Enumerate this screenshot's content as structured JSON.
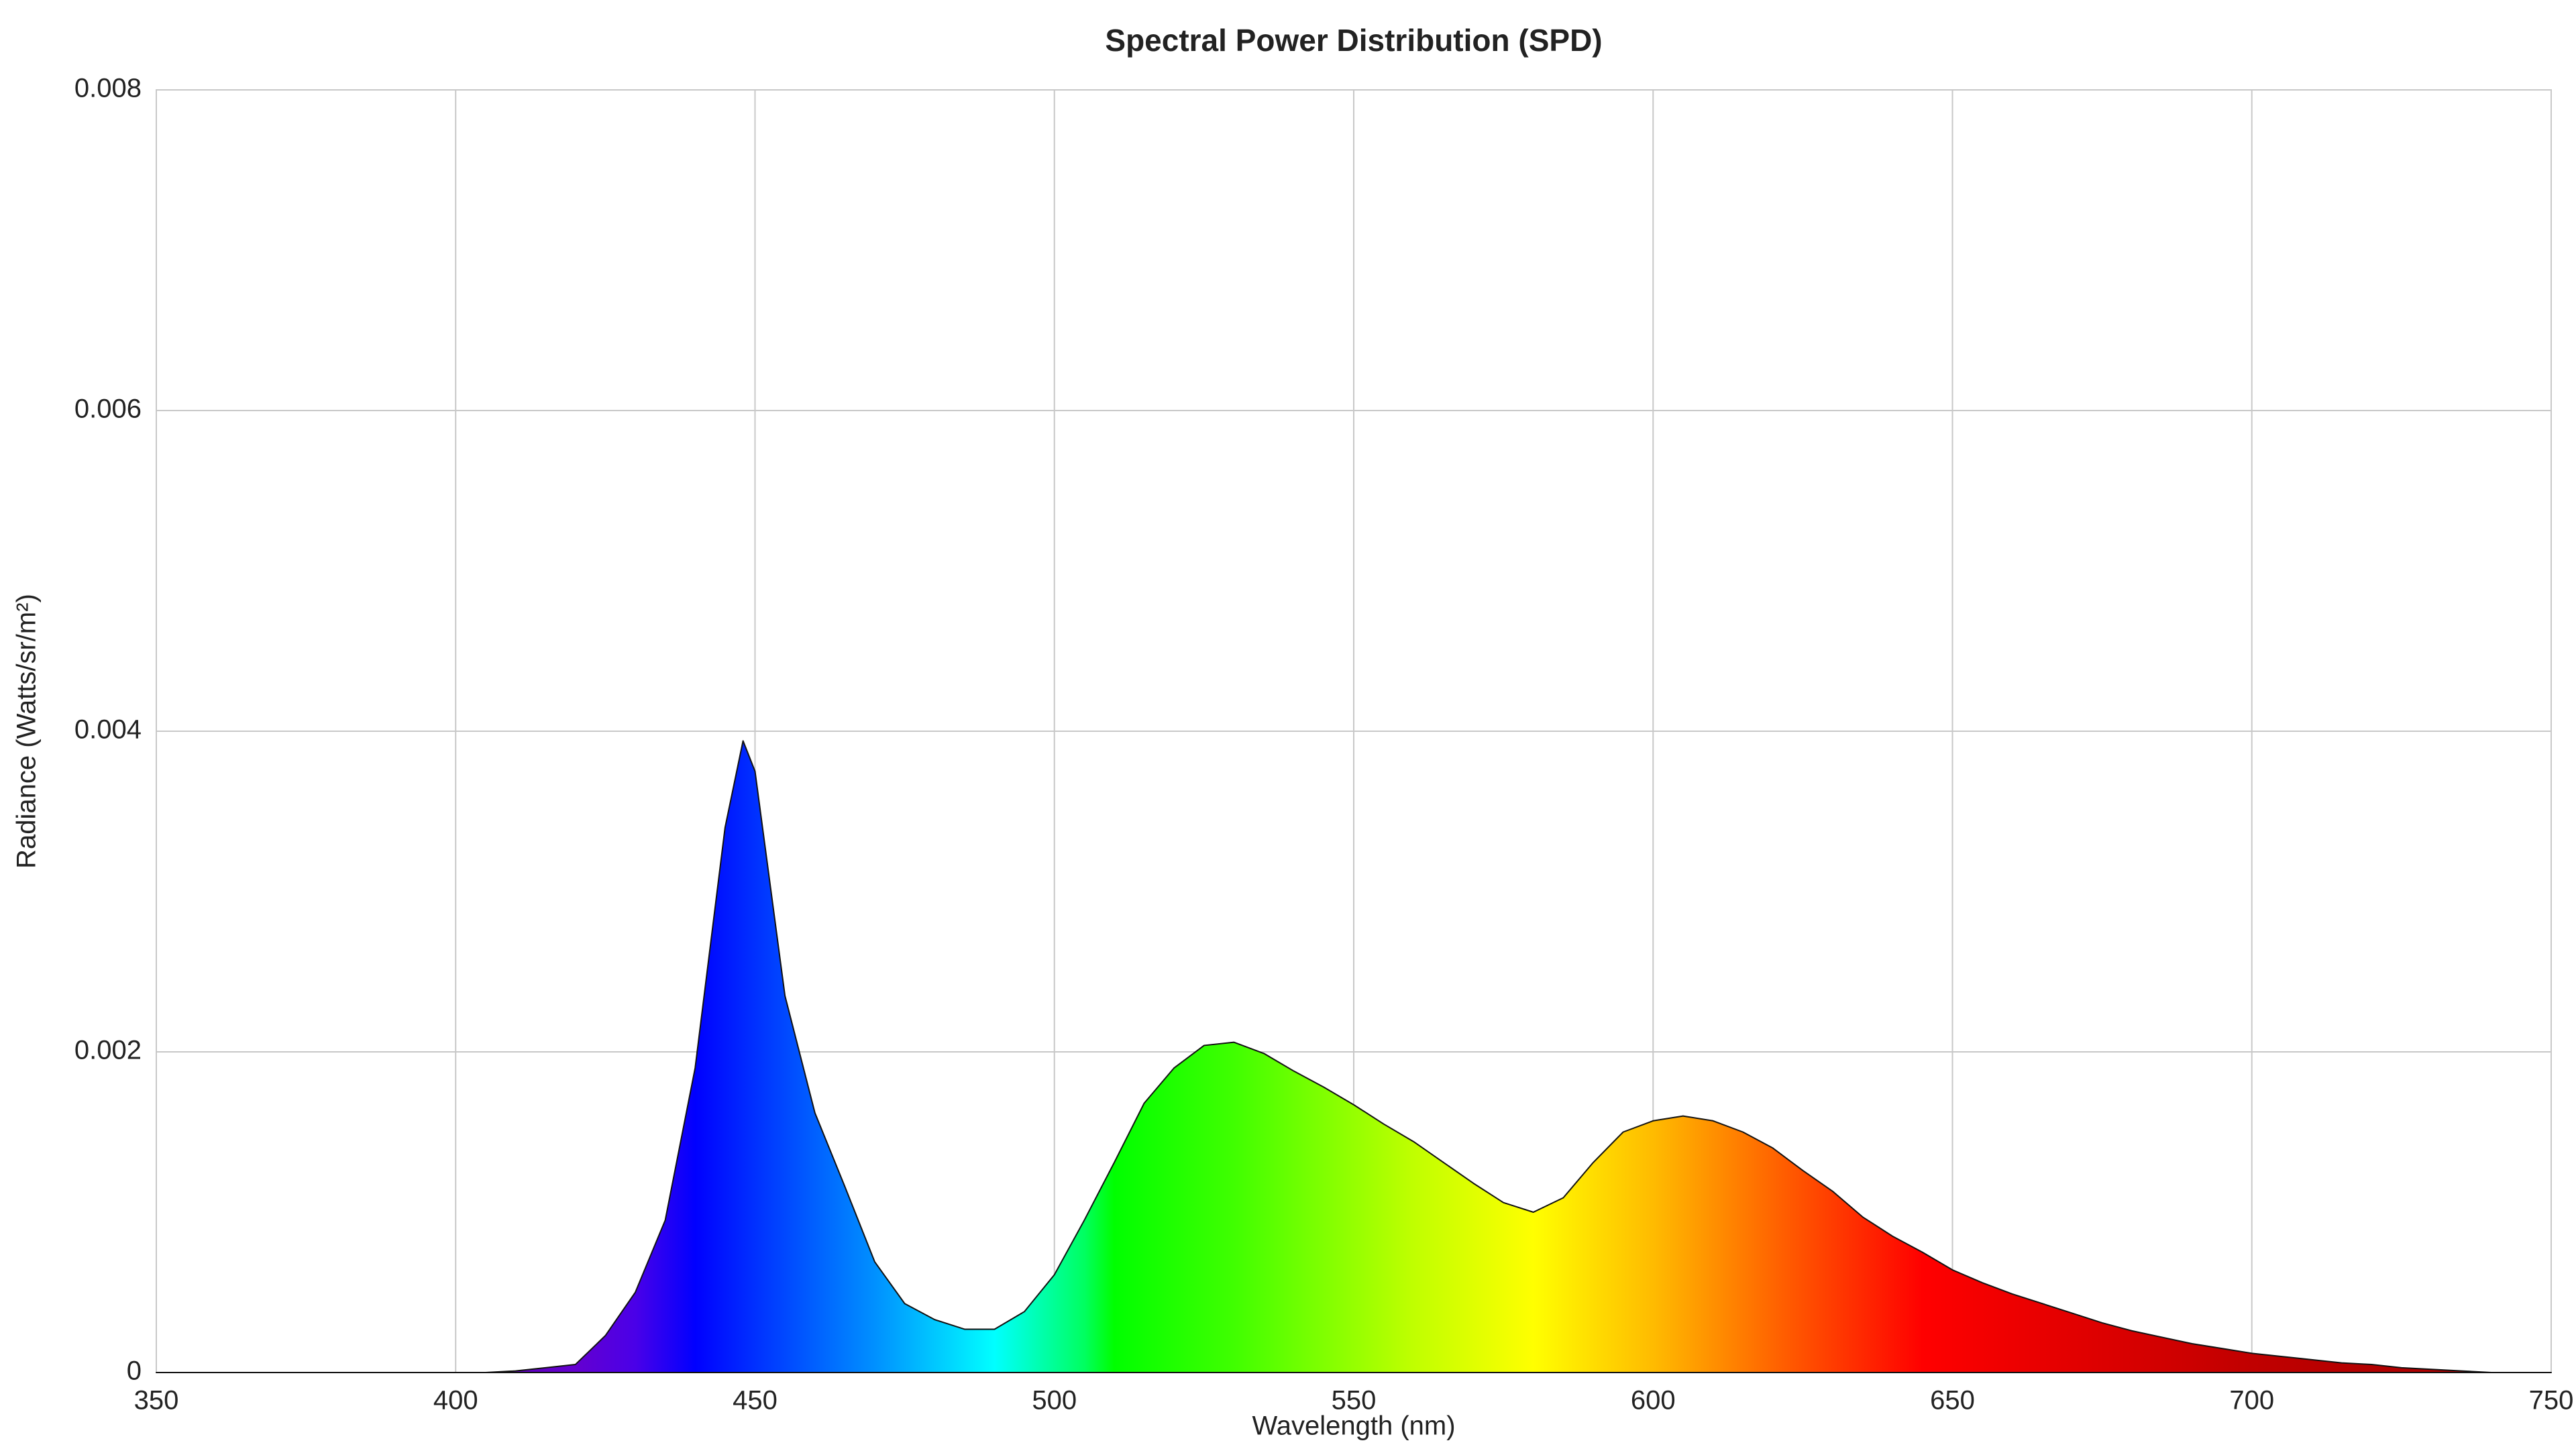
{
  "chart_data": {
    "type": "area",
    "title": "Spectral Power Distribution (SPD)",
    "x_label": "Wavelength (nm)",
    "y_label": "Radiance (Watts/sr/m²)",
    "x": [
      350,
      355,
      360,
      365,
      370,
      375,
      380,
      385,
      390,
      395,
      400,
      405,
      410,
      415,
      420,
      425,
      430,
      435,
      440,
      445,
      448,
      450,
      455,
      460,
      465,
      470,
      475,
      480,
      485,
      490,
      495,
      500,
      505,
      510,
      515,
      520,
      525,
      530,
      535,
      540,
      545,
      550,
      555,
      560,
      565,
      570,
      575,
      580,
      585,
      590,
      595,
      600,
      605,
      610,
      615,
      620,
      625,
      630,
      635,
      640,
      645,
      650,
      655,
      660,
      665,
      670,
      675,
      680,
      685,
      690,
      695,
      700,
      705,
      710,
      715,
      720,
      725,
      730,
      735,
      740,
      745,
      750
    ],
    "values": [
      0,
      0,
      0,
      0,
      0,
      0,
      0,
      0,
      0,
      0,
      0,
      0,
      1e-05,
      3e-05,
      5e-05,
      0.00023,
      0.0005,
      0.00095,
      0.0019,
      0.0034,
      0.00394,
      0.00375,
      0.00235,
      0.00162,
      0.00116,
      0.00069,
      0.00043,
      0.00033,
      0.00027,
      0.00027,
      0.00038,
      0.00061,
      0.00095,
      0.00131,
      0.00168,
      0.0019,
      0.00204,
      0.00206,
      0.00199,
      0.00188,
      0.00178,
      0.00167,
      0.00155,
      0.00144,
      0.00131,
      0.00118,
      0.00106,
      0.001,
      0.00109,
      0.00131,
      0.0015,
      0.00157,
      0.0016,
      0.00157,
      0.0015,
      0.0014,
      0.00126,
      0.00113,
      0.00097,
      0.00085,
      0.00075,
      0.00064,
      0.00056,
      0.00049,
      0.00043,
      0.00037,
      0.00031,
      0.00026,
      0.00022,
      0.00018,
      0.00015,
      0.00012,
      0.0001,
      8e-05,
      6e-05,
      5e-05,
      3e-05,
      2e-05,
      1e-05,
      0,
      0,
      0
    ],
    "xlim": [
      350,
      750
    ],
    "xticks": [
      350,
      400,
      450,
      500,
      550,
      600,
      650,
      700,
      750
    ],
    "ylim": [
      0,
      0.008
    ],
    "yticks": [
      0,
      0.002,
      0.004,
      0.006,
      0.008
    ],
    "grid": true
  }
}
